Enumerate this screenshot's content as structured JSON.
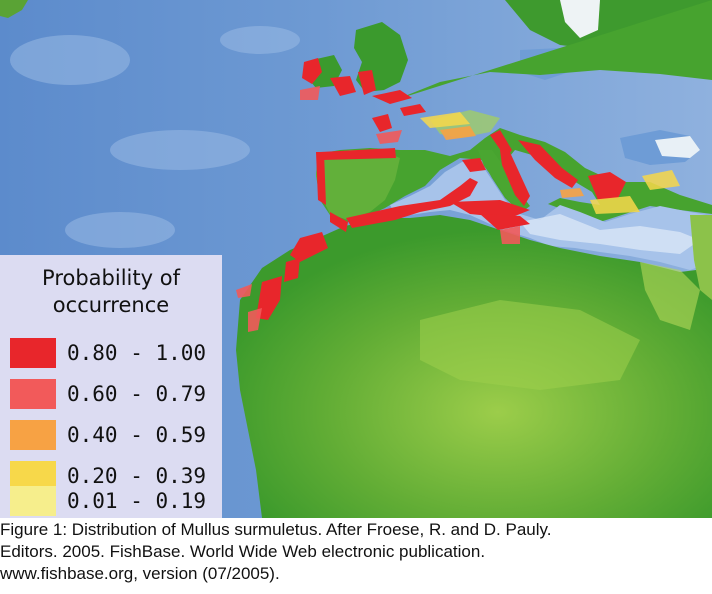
{
  "legend": {
    "title_line1": "Probability of",
    "title_line2": "occurrence",
    "items": [
      {
        "label": "0.80 - 1.00",
        "color": "#e8262b"
      },
      {
        "label": "0.60 - 0.79",
        "color": "#f25a5a"
      },
      {
        "label": "0.40 - 0.59",
        "color": "#f7a244"
      },
      {
        "label": "0.20 - 0.39",
        "color": "#f7d84a"
      },
      {
        "label": "0.01 - 0.19",
        "color": "#f6ee8c"
      }
    ]
  },
  "caption": {
    "line1": "Figure 1: Distribution of Mullus surmuletus. After Froese, R. and D. Pauly.",
    "line2": "Editors. 2005. FishBase. World Wide Web electronic publication.",
    "line3": "www.fishbase.org, version (07/2005)."
  },
  "colors": {
    "ocean": "#5f8fcc",
    "land": "#3f9c2e",
    "desert": "#74b53c",
    "occurrence_high": "#e8262b"
  }
}
